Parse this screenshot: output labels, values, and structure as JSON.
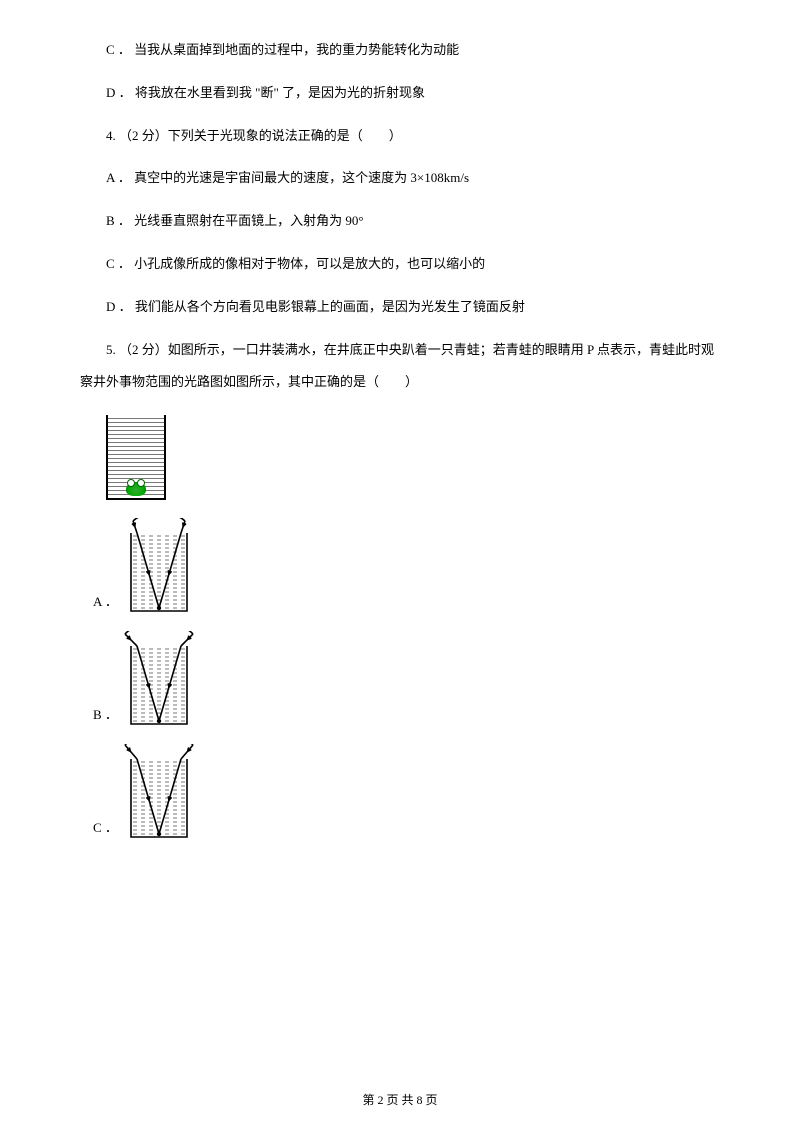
{
  "lines": {
    "c3": "C ． 当我从桌面掉到地面的过程中，我的重力势能转化为动能",
    "d3": "D ． 将我放在水里看到我 \"断\" 了，是因为光的折射现象",
    "q4": "4.  （2 分）下列关于光现象的说法正确的是（　　）",
    "a4": "A ． 真空中的光速是宇宙间最大的速度，这个速度为 3×108km/s",
    "b4": "B ． 光线垂直照射在平面镜上，入射角为 90°",
    "c4": "C ． 小孔成像所成的像相对于物体，可以是放大的，也可以缩小的",
    "d4": "D ． 我们能从各个方向看见电影银幕上的画面，是因为光发生了镜面反射",
    "q5a": "5.  （2 分）如图所示，一口井装满水，在井底正中央趴着一只青蛙；若青蛙的眼睛用 P 点表示，青蛙此时观",
    "q5b": "察井外事物范围的光路图如图所示，其中正确的是（　　）"
  },
  "options": {
    "a": "A ．",
    "b": "B ．",
    "c": "C ．"
  },
  "footer": "第  2  页  共  8  页",
  "well_style": {
    "width": 70,
    "height": 95,
    "well_inner_w": 56,
    "well_inner_h": 80,
    "stroke": "#000000",
    "stroke_w": 1.6,
    "water_line_gap": 4,
    "water_line_color": "#555555",
    "arc_stroke_w": 1.6
  },
  "variants": {
    "A": {
      "arc_above": true,
      "refract_outward": false
    },
    "B": {
      "arc_above": true,
      "refract_outward": true
    },
    "C": {
      "arc_above": true,
      "refract_outward": true,
      "arc_offset": true
    }
  }
}
